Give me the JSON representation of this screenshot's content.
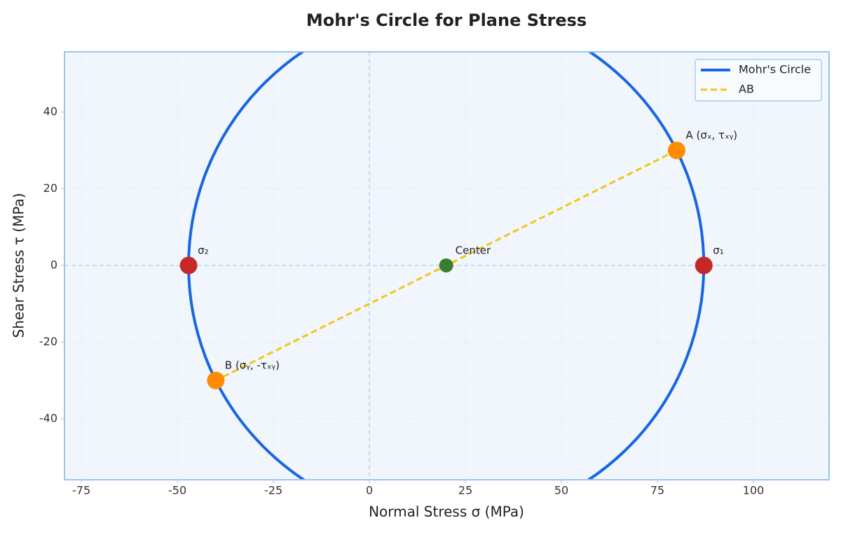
{
  "chart_data": {
    "type": "mohr",
    "title": "Mohr's Circle for Plane Stress",
    "xlabel": "Normal Stress σ (MPa)",
    "ylabel": "Shear Stress τ (MPa)",
    "xlim": [
      -79.4,
      119.7
    ],
    "ylim": [
      -55.9,
      55.7
    ],
    "xticks": [
      -75,
      -50,
      -25,
      0,
      25,
      50,
      75,
      100
    ],
    "yticks": [
      -40,
      -20,
      0,
      20,
      40
    ],
    "grid": true,
    "legend": "upper right",
    "circle": {
      "name": "Mohr's Circle",
      "color": "#1a66e0",
      "center": [
        20,
        0
      ],
      "radius": 67.08
    },
    "segment": {
      "name": "AB",
      "color": "#f5c518",
      "x": [
        80,
        -40
      ],
      "y": [
        30,
        -30
      ]
    },
    "points": [
      {
        "label": "A (σₓ, τₓᵧ)",
        "x": 80,
        "y": 30,
        "color": "#ff8c00"
      },
      {
        "label": "B (σᵧ, -τₓᵧ)",
        "x": -40,
        "y": -30,
        "color": "#ff8c00"
      },
      {
        "label": "Center",
        "x": 20,
        "y": 0,
        "color": "#3a7d32"
      },
      {
        "label": "σ₁",
        "x": 87.08,
        "y": 0,
        "color": "#c62828"
      },
      {
        "label": "σ₂",
        "x": -47.08,
        "y": 0,
        "color": "#c62828"
      }
    ]
  }
}
